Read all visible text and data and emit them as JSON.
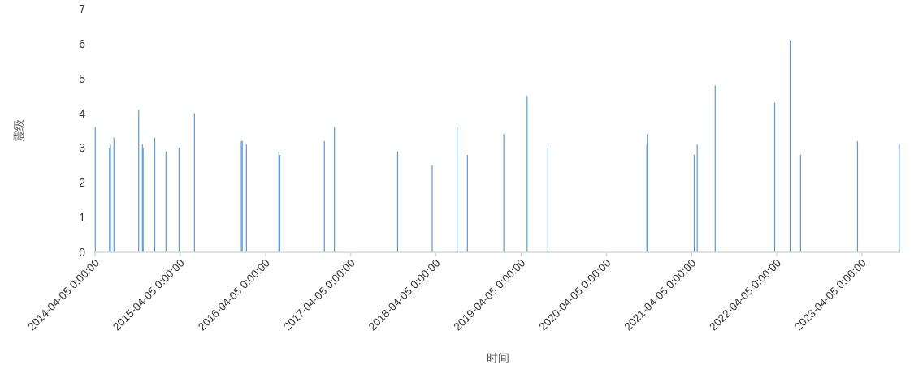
{
  "chart_data": {
    "type": "bar",
    "xlabel": "时间",
    "ylabel": "震级",
    "color": "#5b9bd5",
    "x": [
      "2014-04-06",
      "2014-06-06",
      "2014-06-10",
      "2014-06-25",
      "2014-10-09",
      "2014-10-25",
      "2014-10-28",
      "2014-12-17",
      "2015-02-03",
      "2015-03-31",
      "2015-06-05",
      "2015-12-23",
      "2015-12-27",
      "2016-01-14",
      "2016-06-01",
      "2016-06-05",
      "2016-12-13",
      "2017-01-25",
      "2017-10-23",
      "2018-03-20",
      "2018-07-05",
      "2018-08-18",
      "2019-01-21",
      "2019-05-01",
      "2019-07-29",
      "2020-09-25",
      "2020-09-27",
      "2021-04-16",
      "2021-04-29",
      "2021-07-15",
      "2022-03-27",
      "2022-06-01",
      "2022-07-16",
      "2023-03-17",
      "2023-09-12"
    ],
    "values": [
      3.6,
      3.0,
      3.1,
      3.3,
      4.1,
      3.1,
      3.0,
      3.3,
      2.9,
      3.0,
      4.0,
      3.2,
      3.2,
      3.1,
      2.9,
      2.8,
      3.2,
      3.6,
      2.9,
      2.5,
      3.6,
      2.8,
      3.4,
      4.5,
      3.0,
      3.1,
      3.4,
      2.8,
      3.1,
      4.8,
      4.3,
      6.1,
      2.8,
      3.2,
      3.1
    ],
    "xlim": [
      "2014-04-05",
      "2023-09-16"
    ],
    "xticks": [
      {
        "value": "2014-04-05",
        "label": "2014-04-05 0:00:00"
      },
      {
        "value": "2015-04-05",
        "label": "2015-04-05 0:00:00"
      },
      {
        "value": "2016-04-05",
        "label": "2016-04-05 0:00:00"
      },
      {
        "value": "2017-04-05",
        "label": "2017-04-05 0:00:00"
      },
      {
        "value": "2018-04-05",
        "label": "2018-04-05 0:00:00"
      },
      {
        "value": "2019-04-05",
        "label": "2019-04-05 0:00:00"
      },
      {
        "value": "2020-04-05",
        "label": "2020-04-05 0:00:00"
      },
      {
        "value": "2021-04-05",
        "label": "2021-04-05 0:00:00"
      },
      {
        "value": "2022-04-05",
        "label": "2022-04-05 0:00:00"
      },
      {
        "value": "2023-04-05",
        "label": "2023-04-05 0:00:00"
      }
    ],
    "ylim": [
      0,
      7
    ],
    "yticks": [
      0,
      1,
      2,
      3,
      4,
      5,
      6,
      7
    ],
    "grid": false
  }
}
